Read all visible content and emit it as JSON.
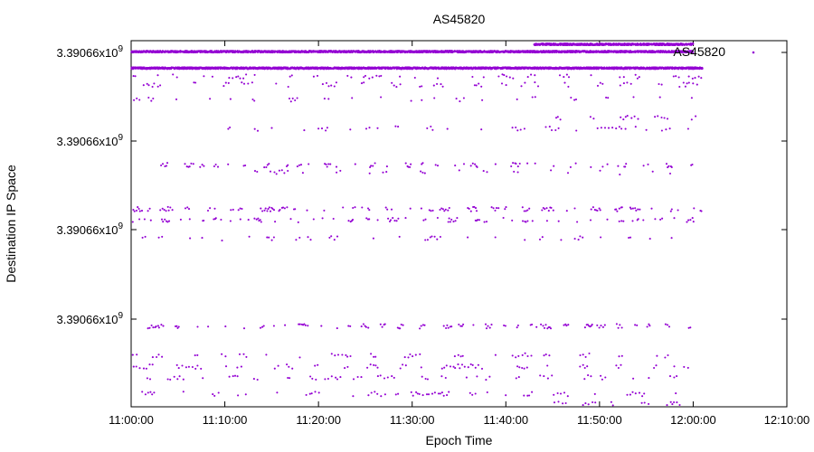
{
  "chart_data": {
    "type": "scatter",
    "title": "AS45820",
    "xlabel": "Epoch Time",
    "ylabel": "Destination IP Space",
    "x_ticks": [
      "11:00:00",
      "11:10:00",
      "11:20:00",
      "11:30:00",
      "11:40:00",
      "11:50:00",
      "12:00:00",
      "12:10:00"
    ],
    "xlim": [
      "11:00:00",
      "12:10:00"
    ],
    "y_tick_mantissa": "3.39066x10",
    "y_tick_exponent": "9",
    "y_tick_count": 4,
    "legend": {
      "position": "top-right",
      "entries": [
        "AS45820"
      ]
    },
    "grid": false,
    "marker_color": "#9400d3",
    "series": [
      {
        "name": "AS45820",
        "bands": [
          {
            "level": 0.97,
            "start": 0,
            "end": 60,
            "density": "dense"
          },
          {
            "level": 0.99,
            "start": 43,
            "end": 60,
            "density": "dense"
          },
          {
            "level": 0.925,
            "start": 0,
            "end": 61,
            "density": "dense"
          },
          {
            "level": 0.902,
            "start": 0,
            "end": 61,
            "density": "sparse"
          },
          {
            "level": 0.88,
            "start": 0,
            "end": 61,
            "density": "sparse"
          },
          {
            "level": 0.84,
            "start": 0,
            "end": 61,
            "density": "sparse"
          },
          {
            "level": 0.79,
            "start": 45,
            "end": 61,
            "density": "sparse"
          },
          {
            "level": 0.76,
            "start": 10,
            "end": 61,
            "density": "sparse"
          },
          {
            "level": 0.66,
            "start": 3,
            "end": 60,
            "density": "medium"
          },
          {
            "level": 0.64,
            "start": 10,
            "end": 60,
            "density": "sparse"
          },
          {
            "level": 0.54,
            "start": 0,
            "end": 61,
            "density": "medium"
          },
          {
            "level": 0.51,
            "start": 0,
            "end": 61,
            "density": "medium"
          },
          {
            "level": 0.46,
            "start": 1,
            "end": 59,
            "density": "sparse"
          },
          {
            "level": 0.22,
            "start": 0,
            "end": 60,
            "density": "medium"
          },
          {
            "level": 0.14,
            "start": 0,
            "end": 60,
            "density": "sparse"
          },
          {
            "level": 0.11,
            "start": 0,
            "end": 60,
            "density": "sparse"
          },
          {
            "level": 0.08,
            "start": 0,
            "end": 61,
            "density": "sparse"
          },
          {
            "level": 0.035,
            "start": 1,
            "end": 61,
            "density": "sparse"
          },
          {
            "level": 0.01,
            "start": 45,
            "end": 61,
            "density": "sparse"
          }
        ]
      }
    ]
  }
}
